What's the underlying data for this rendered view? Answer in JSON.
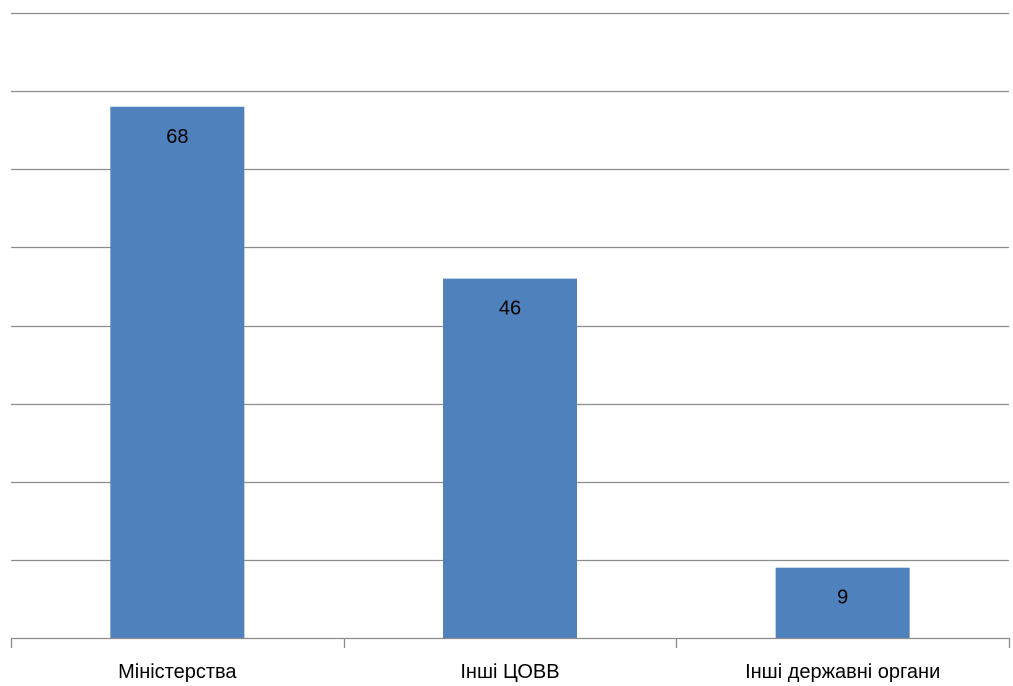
{
  "chart_data": {
    "type": "bar",
    "categories": [
      "Міністерства",
      "Інші ЦОВВ",
      "Інші державні органи"
    ],
    "values": [
      68,
      46,
      9
    ],
    "data_labels": [
      "68",
      "46",
      "9"
    ],
    "title": "",
    "xlabel": "",
    "ylabel": "",
    "ylim": [
      0,
      80
    ],
    "y_gridline_step": 10,
    "grid": true,
    "legend": "none",
    "bar_color": "#4f81bd",
    "gridline_color": "#8c8c8c"
  }
}
